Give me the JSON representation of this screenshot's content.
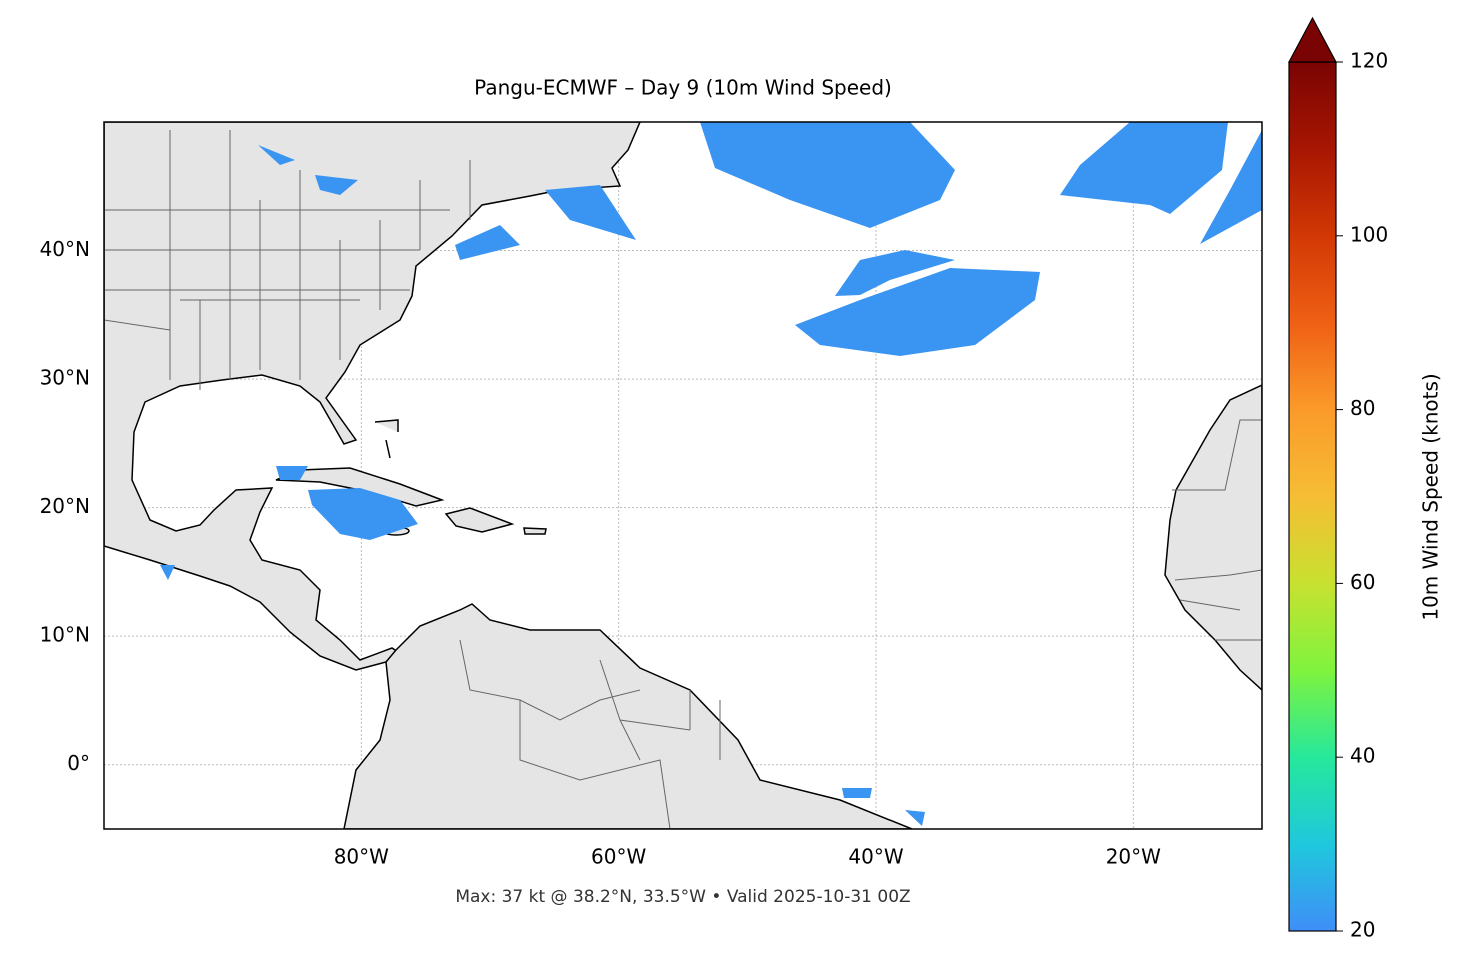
{
  "map": {
    "title": "Pangu-ECMWF – Day 9 (10m Wind Speed)",
    "footer": "Max: 37 kt @ 38.2°N, 33.5°W • Valid 2025-10-31 00Z",
    "xlim": [
      -100,
      -10
    ],
    "ylim": [
      -5,
      50
    ],
    "xticks": [
      {
        "value": -80,
        "label": "80°W"
      },
      {
        "value": -60,
        "label": "60°W"
      },
      {
        "value": -40,
        "label": "40°W"
      },
      {
        "value": -20,
        "label": "20°W"
      }
    ],
    "yticks": [
      {
        "value": 0,
        "label": "0°"
      },
      {
        "value": 10,
        "label": "10°N"
      },
      {
        "value": 20,
        "label": "20°N"
      },
      {
        "value": 30,
        "label": "30°N"
      },
      {
        "value": 40,
        "label": "40°N"
      }
    ],
    "grid": true,
    "colorbar": {
      "label": "10m Wind Speed (knots)",
      "range": [
        20,
        120
      ],
      "ticks": [
        20,
        40,
        60,
        80,
        100,
        120
      ],
      "colors": [
        "#3f8ef7",
        "#1fc8dc",
        "#26e89b",
        "#7ff33e",
        "#c8e130",
        "#f6bd34",
        "#fb9a2a",
        "#ef6014",
        "#d23805",
        "#a71602",
        "#7a0403"
      ]
    }
  }
}
